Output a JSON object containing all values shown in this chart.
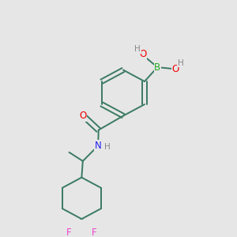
{
  "background_color": "#e6e6e6",
  "bond_color": "#3a7a62",
  "bond_width": 1.4,
  "atom_colors": {
    "O": "#ee0000",
    "N": "#2222ee",
    "B": "#22aa22",
    "F": "#ee44cc",
    "H": "#888888",
    "C": "#3a7a62"
  },
  "font_size": 8.5,
  "fig_size": [
    3.0,
    3.0
  ],
  "dpi": 100
}
